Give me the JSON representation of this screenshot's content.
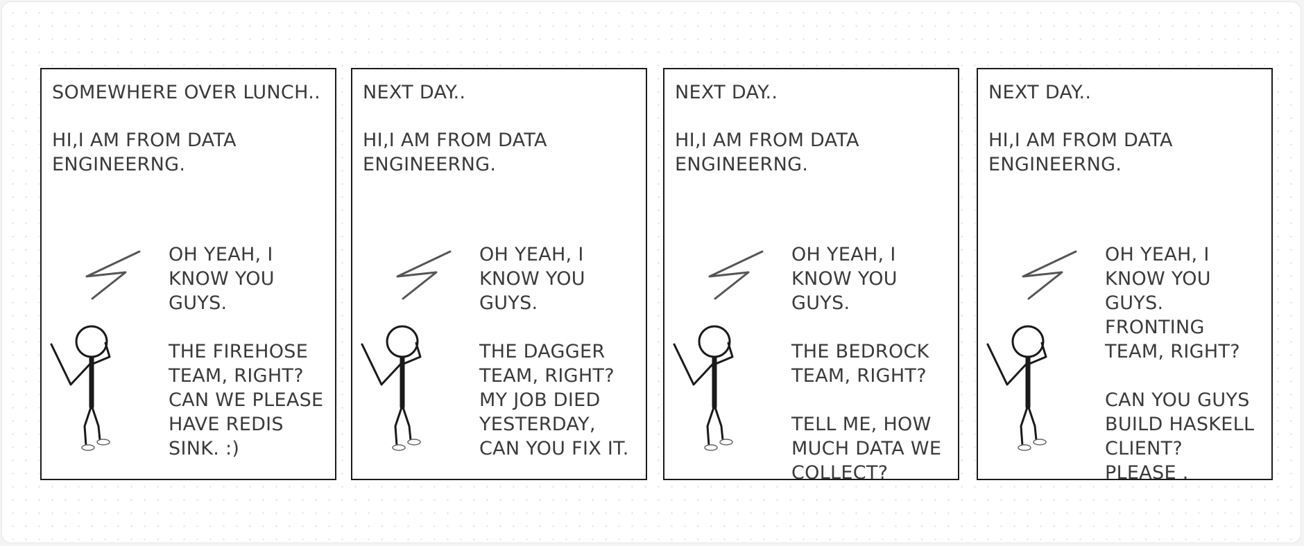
{
  "comic": {
    "panels": [
      {
        "caption": "SOMEWHERE OVER LUNCH..",
        "intro": "HI,I AM FROM DATA\nENGINEERNG.",
        "reply_1": "OH YEAH, I\nKNOW YOU\nGUYS.",
        "reply_2": "THE FIREHOSE\nTEAM, RIGHT?\nCAN WE PLEASE\nHAVE REDIS\nSINK. :)"
      },
      {
        "caption": "NEXT DAY..",
        "intro": "HI,I AM FROM DATA\nENGINEERNG.",
        "reply_1": "OH YEAH, I\nKNOW YOU\nGUYS.",
        "reply_2": "THE DAGGER\nTEAM, RIGHT?\nMY JOB DIED\nYESTERDAY,\nCAN YOU FIX IT."
      },
      {
        "caption": "NEXT DAY..",
        "intro": "HI,I AM FROM DATA\nENGINEERNG.",
        "reply_1": "OH YEAH, I\nKNOW YOU\nGUYS.",
        "reply_2": "THE BEDROCK\nTEAM, RIGHT?\n\nTELL ME, HOW\nMUCH DATA WE\nCOLLECT?"
      },
      {
        "caption": "NEXT DAY..",
        "intro": "HI,I AM FROM DATA\nENGINEERNG.",
        "reply_1": "OH YEAH, I\nKNOW YOU\nGUYS.\nFRONTING\nTEAM, RIGHT?",
        "reply_2": "CAN YOU GUYS\nBUILD HASKELL\nCLIENT?\nPLEASE  ."
      }
    ],
    "ink_color": "#1a1a1a",
    "text_color": "#3a3a3a",
    "doodle_color": "#555555"
  }
}
